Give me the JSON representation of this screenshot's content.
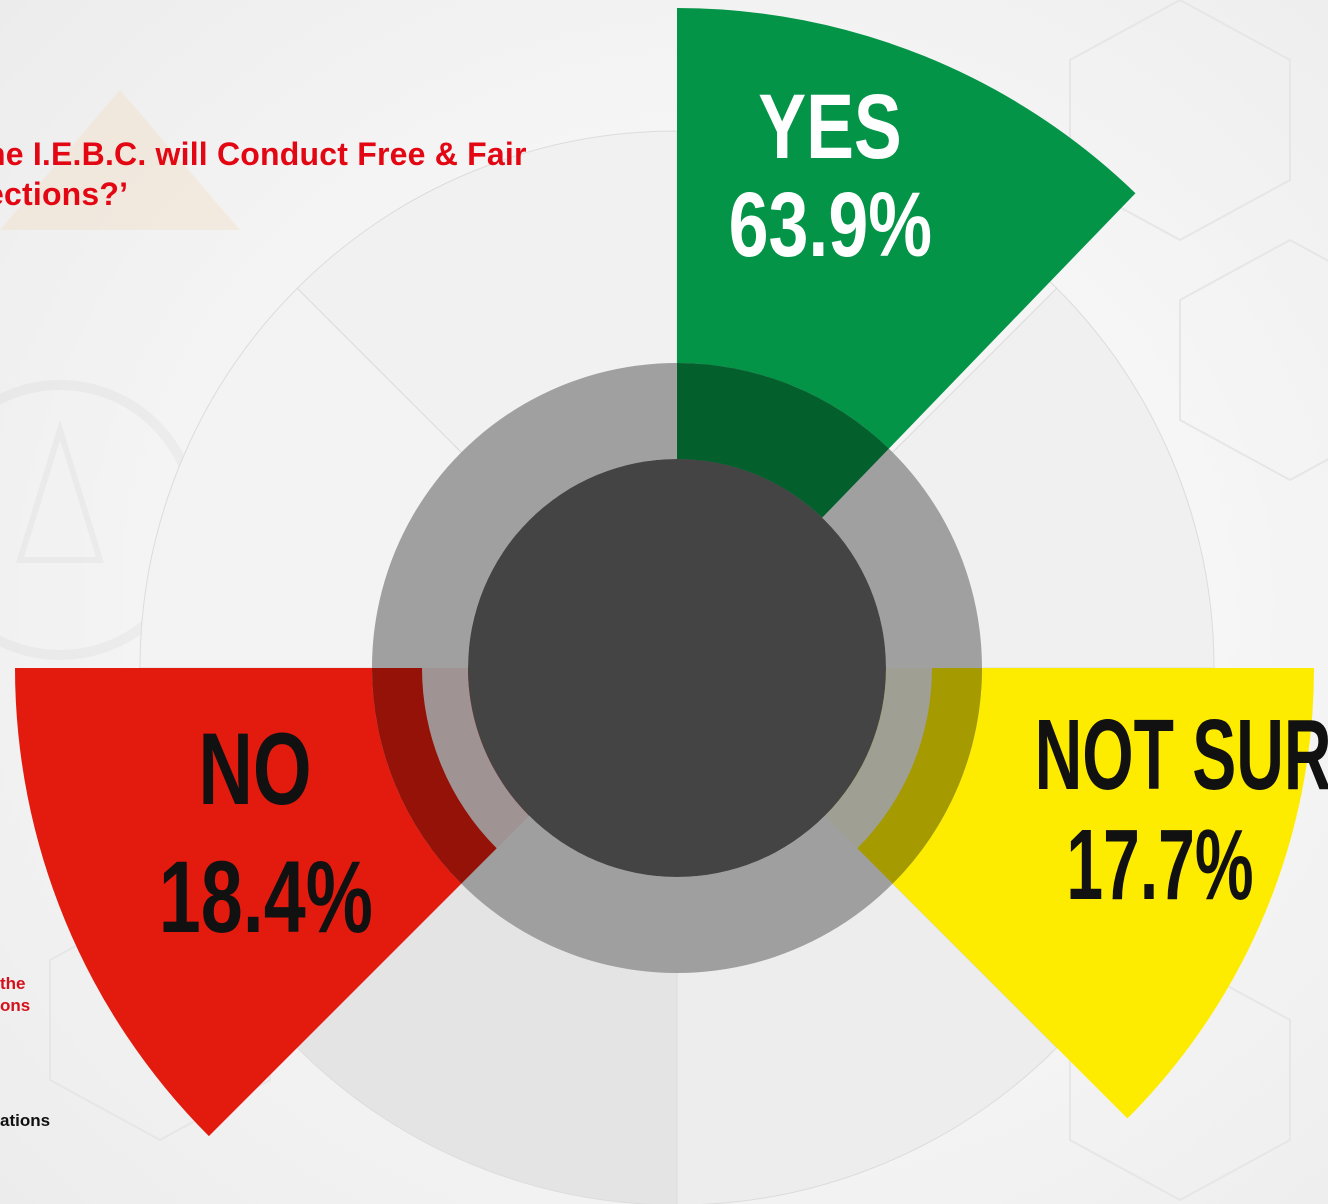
{
  "title": {
    "line1": "he I.E.B.C. will Conduct  Free & Fair",
    "line2": "ections?’"
  },
  "footnotes": {
    "red_line1": "the",
    "red_line2": "ons",
    "black": "ations"
  },
  "colors": {
    "yes": "#039447",
    "no": "#e31b0f",
    "not_sure": "#fdeb00",
    "ring": "#9b9b9b",
    "hub": "#444444",
    "wheel": "#ebebeb"
  },
  "chart_data": {
    "type": "pie",
    "categories": [
      "YES",
      "NO",
      "NOT SURE"
    ],
    "values": [
      63.9,
      18.4,
      17.7
    ],
    "labels": {
      "yes": {
        "name": "YES",
        "value": "63.9%"
      },
      "no": {
        "name": "NO",
        "value": "18.4%"
      },
      "not_sure": {
        "name": "NOT SURE",
        "value": "17.7%"
      }
    },
    "unit": "%"
  }
}
